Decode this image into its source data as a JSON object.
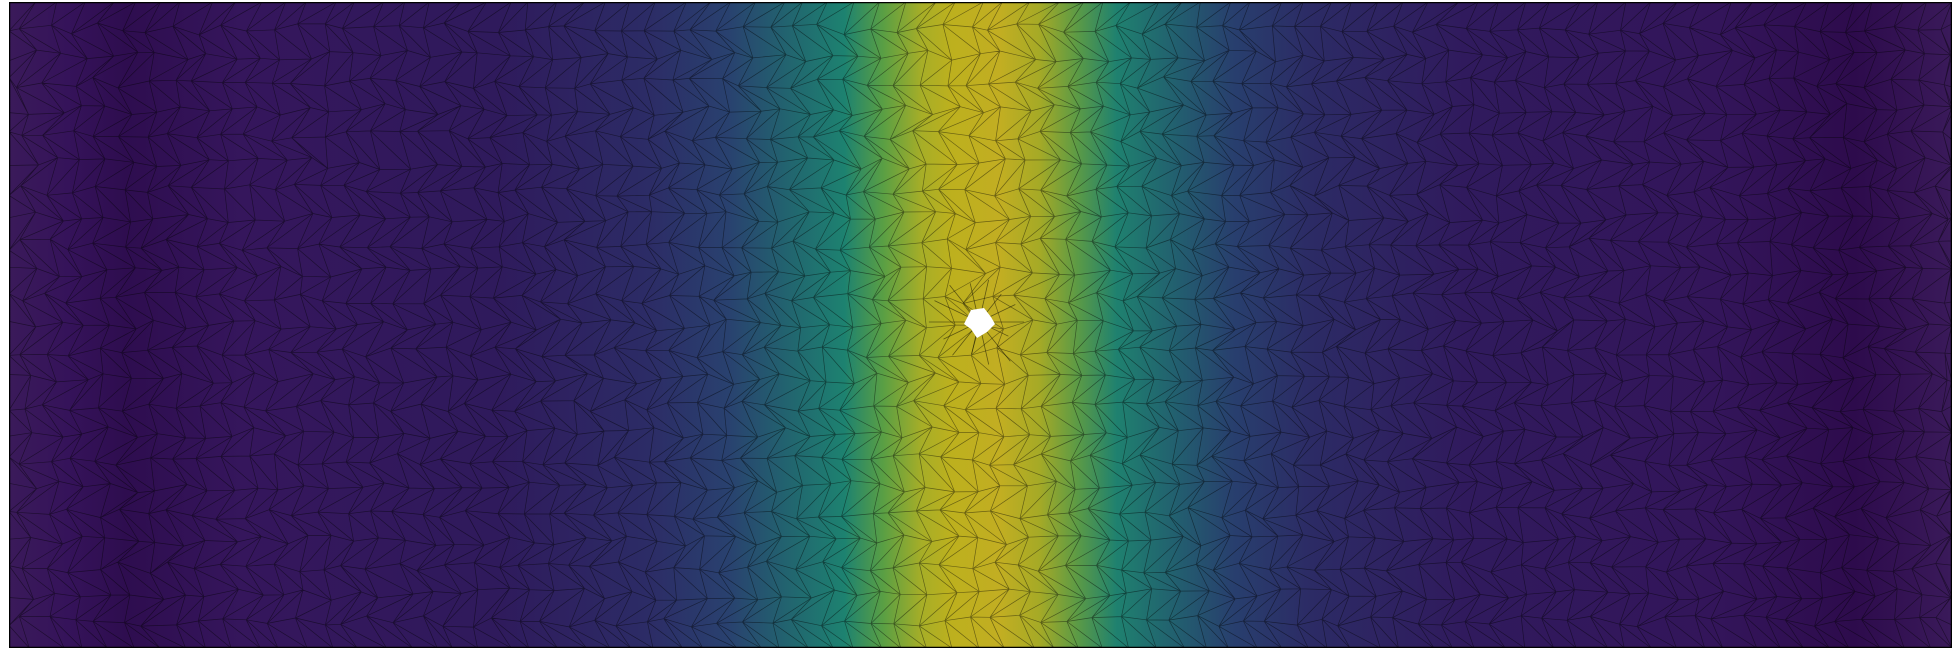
{
  "figure": {
    "kind": "finite-element mesh field plot",
    "colormap": "viridis",
    "colors": {
      "low": "#440154",
      "mid": "#21918c",
      "high": "#bfb81f",
      "mesh_line": "#000000",
      "background": "#ffffff",
      "frame": "#000000"
    },
    "mesh": {
      "element_type": "triangle",
      "edges_visible": true,
      "hole_near_center": true
    },
    "field_profile": {
      "description_axis": "horizontal",
      "peak_at_fraction": 0.5,
      "low_at_edges": true
    }
  }
}
